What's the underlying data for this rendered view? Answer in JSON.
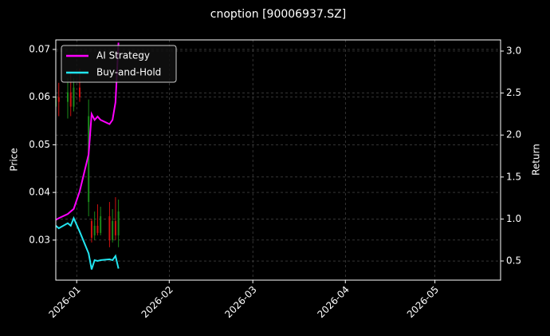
{
  "chart_data": {
    "type": "candlestick",
    "title": "cnoption [90006937.SZ]",
    "ylabel": "Price",
    "y2label": "Return",
    "x": [
      "2025-12-25",
      "2025-12-26",
      "2025-12-29",
      "2025-12-30",
      "2025-12-31",
      "2026-01-02",
      "2026-01-05",
      "2026-01-06",
      "2026-01-07",
      "2026-01-08",
      "2026-01-09",
      "2026-01-12",
      "2026-01-13",
      "2026-01-14",
      "2026-01-15"
    ],
    "open": [
      0.058,
      0.06,
      0.059,
      0.061,
      0.058,
      0.062,
      0.038,
      0.034,
      0.031,
      0.033,
      0.0315,
      0.035,
      0.03,
      0.034,
      0.031
    ],
    "high": [
      0.0625,
      0.063,
      0.064,
      0.065,
      0.064,
      0.066,
      0.0595,
      0.0345,
      0.036,
      0.0375,
      0.037,
      0.038,
      0.0365,
      0.039,
      0.0385
    ],
    "low": [
      0.0505,
      0.056,
      0.0555,
      0.056,
      0.057,
      0.059,
      0.035,
      0.0295,
      0.03,
      0.031,
      0.031,
      0.0285,
      0.0295,
      0.03,
      0.0285
    ],
    "close": [
      0.06,
      0.059,
      0.061,
      0.058,
      0.062,
      0.06,
      0.056,
      0.0305,
      0.033,
      0.0315,
      0.035,
      0.03,
      0.034,
      0.031,
      0.036
    ],
    "up_color": "#1a8a1a",
    "down_color": "#d01010",
    "series": [
      {
        "name": "AI Strategy",
        "color": "#ff00ff",
        "axis": "y2",
        "values": [
          0.99,
          1.01,
          1.06,
          1.09,
          1.12,
          1.33,
          1.77,
          2.25,
          2.18,
          2.22,
          2.18,
          2.13,
          2.18,
          2.39,
          3.1
        ]
      },
      {
        "name": "Buy-and-Hold",
        "color": "#22e5f0",
        "axis": "y2",
        "values": [
          0.92,
          0.89,
          0.95,
          0.92,
          1.01,
          0.85,
          0.59,
          0.4,
          0.51,
          0.5,
          0.51,
          0.52,
          0.51,
          0.56,
          0.41
        ]
      }
    ],
    "xlim": [
      "2025-12-25",
      "2026-05-23"
    ],
    "xticks": [
      {
        "value": "2026-01-01",
        "label": "2026-01"
      },
      {
        "value": "2026-02-01",
        "label": "2026-02"
      },
      {
        "value": "2026-03-01",
        "label": "2026-03"
      },
      {
        "value": "2026-04-01",
        "label": "2026-04"
      },
      {
        "value": "2026-05-01",
        "label": "2026-05"
      }
    ],
    "ylim": [
      0.0216,
      0.072
    ],
    "yticks": [
      0.03,
      0.04,
      0.05,
      0.06,
      0.07
    ],
    "y2lim": [
      0.272,
      3.133
    ],
    "y2ticks": [
      0.5,
      {
        "value": 1,
        "label": "1.0"
      },
      1.5,
      {
        "value": 2,
        "label": "2.0"
      },
      2.5,
      {
        "value": 3,
        "label": "3.0"
      }
    ],
    "grid": true,
    "legend": "upper left"
  }
}
